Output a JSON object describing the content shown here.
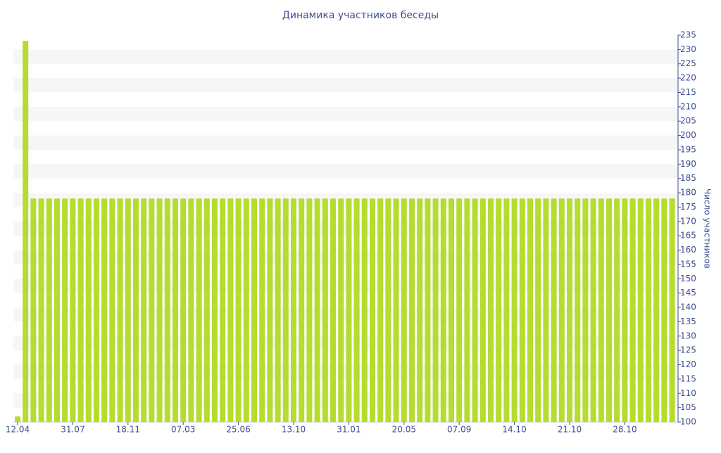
{
  "chart_data": {
    "type": "bar",
    "title": "Динамика участников беседы",
    "y_axis_label": "Число участников",
    "categories": [
      "12.04",
      null,
      null,
      null,
      null,
      null,
      null,
      "31.07",
      null,
      null,
      null,
      null,
      null,
      null,
      "18.11",
      null,
      null,
      null,
      null,
      null,
      null,
      "07.03",
      null,
      null,
      null,
      null,
      null,
      null,
      "25.06",
      null,
      null,
      null,
      null,
      null,
      null,
      "13.10",
      null,
      null,
      null,
      null,
      null,
      null,
      "31.01",
      null,
      null,
      null,
      null,
      null,
      null,
      "20.05",
      null,
      null,
      null,
      null,
      null,
      null,
      "07.09",
      null,
      null,
      null,
      null,
      null,
      null,
      "14.10",
      null,
      null,
      null,
      null,
      null,
      null,
      "21.10",
      null,
      null,
      null,
      null,
      null,
      null,
      "28.10",
      null,
      null,
      null,
      null,
      null,
      null
    ],
    "values": [
      102,
      233,
      178,
      178,
      178,
      178,
      178,
      178,
      178,
      178,
      178,
      178,
      178,
      178,
      178,
      178,
      178,
      178,
      178,
      178,
      178,
      178,
      178,
      178,
      178,
      178,
      178,
      178,
      178,
      178,
      178,
      178,
      178,
      178,
      178,
      178,
      178,
      178,
      178,
      178,
      178,
      178,
      178,
      178,
      178,
      178,
      178,
      178,
      178,
      178,
      178,
      178,
      178,
      178,
      178,
      178,
      178,
      178,
      178,
      178,
      178,
      178,
      178,
      178,
      178,
      178,
      178,
      178,
      178,
      178,
      178,
      178,
      178,
      178,
      178,
      178,
      178,
      178,
      178,
      178,
      178,
      178,
      178,
      178
    ],
    "color": "#b5dc2e",
    "ylim": [
      100,
      235
    ],
    "yticks": [
      100,
      105,
      110,
      115,
      120,
      125,
      130,
      135,
      140,
      145,
      150,
      155,
      160,
      165,
      170,
      175,
      180,
      185,
      190,
      195,
      200,
      205,
      210,
      215,
      220,
      225,
      230,
      235
    ],
    "grid": "bands",
    "y_axis_side": "right"
  }
}
